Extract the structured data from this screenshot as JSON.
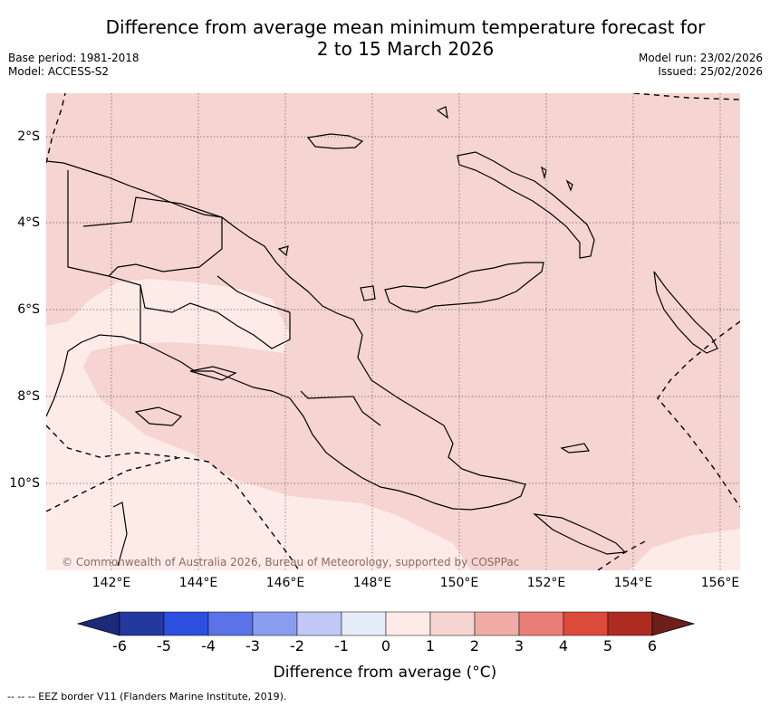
{
  "header": {
    "title_line1": "Difference from average mean minimum temperature forecast for",
    "title_line2": "2 to 15 March 2026",
    "base_period": "Base period: 1981-2018",
    "model": "Model: ACCESS-S2",
    "model_run": "Model run: 23/02/2026",
    "issued": "Issued: 25/02/2026"
  },
  "map": {
    "copyright": "© Commonwealth of Australia 2026, Bureau of Meteorology, supported by COSPPac",
    "lon_labels": [
      "142°E",
      "144°E",
      "146°E",
      "148°E",
      "150°E",
      "152°E",
      "154°E",
      "156°E"
    ],
    "lat_labels": [
      "2°S",
      "4°S",
      "6°S",
      "8°S",
      "10°S"
    ],
    "colors": {
      "band_0_1": "#fdebe8",
      "band_1_2": "#f5d4d1",
      "land_outline": "#000000"
    }
  },
  "colorbar": {
    "title": "Difference from average (°C)",
    "tick_labels": [
      "-6",
      "-5",
      "-4",
      "-3",
      "-2",
      "-1",
      "0",
      "1",
      "2",
      "3",
      "4",
      "5",
      "6"
    ],
    "colors": [
      "#23399e",
      "#2d4fe0",
      "#5b73e6",
      "#8a9cf0",
      "#c1c8f5",
      "#e6ebfa",
      "#fdebe8",
      "#f5d4d1",
      "#f0aba6",
      "#e87e75",
      "#dc4a3c",
      "#ae2b22"
    ],
    "under_color": "#1b2b78",
    "over_color": "#6e1f1b"
  },
  "footer": {
    "legend": "--  --  -- EEZ border V11 (Flanders Marine Institute, 2019)."
  }
}
